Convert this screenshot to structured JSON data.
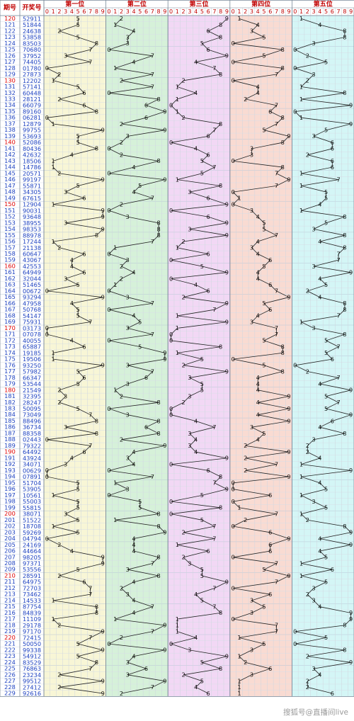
{
  "header": {
    "period": "期号",
    "number": "开奖号",
    "positions": [
      "第一位",
      "第二位",
      "第三位",
      "第四位",
      "第五位"
    ],
    "digit_labels": [
      0,
      1,
      2,
      3,
      4,
      5,
      6,
      7,
      8,
      9
    ]
  },
  "rows": [
    {
      "period": 120,
      "digits": [
        5,
        2,
        9,
        1,
        1
      ]
    },
    {
      "period": 121,
      "digits": [
        5,
        1,
        8,
        4,
        4
      ]
    },
    {
      "period": 122,
      "digits": [
        2,
        4,
        6,
        3,
        8
      ]
    },
    {
      "period": 123,
      "digits": [
        5,
        3,
        8,
        5,
        8
      ]
    },
    {
      "period": 124,
      "digits": [
        8,
        3,
        5,
        0,
        3
      ]
    },
    {
      "period": 125,
      "digits": [
        7,
        0,
        6,
        8,
        0
      ]
    },
    {
      "period": 126,
      "digits": [
        3,
        7,
        9,
        5,
        2
      ]
    },
    {
      "period": 127,
      "digits": [
        7,
        4,
        4,
        0,
        5
      ]
    },
    {
      "period": 128,
      "digits": [
        0,
        1,
        7,
        8,
        0
      ]
    },
    {
      "period": 129,
      "digits": [
        2,
        7,
        8,
        7,
        3
      ]
    },
    {
      "period": 130,
      "digits": [
        1,
        2,
        2,
        0,
        2
      ]
    },
    {
      "period": 131,
      "digits": [
        5,
        7,
        1,
        4,
        1
      ]
    },
    {
      "period": 132,
      "digits": [
        6,
        0,
        4,
        4,
        8
      ]
    },
    {
      "period": 133,
      "digits": [
        2,
        8,
        1,
        2,
        1
      ]
    },
    {
      "period": 134,
      "digits": [
        6,
        6,
        0,
        7,
        9
      ]
    },
    {
      "period": 135,
      "digits": [
        8,
        9,
        1,
        6,
        0
      ]
    },
    {
      "period": 136,
      "digits": [
        0,
        6,
        2,
        8,
        1
      ]
    },
    {
      "period": 137,
      "digits": [
        1,
        2,
        8,
        7,
        9
      ]
    },
    {
      "period": 138,
      "digits": [
        9,
        9,
        7,
        5,
        5
      ]
    },
    {
      "period": 139,
      "digits": [
        5,
        3,
        6,
        9,
        3
      ]
    },
    {
      "period": 140,
      "digits": [
        5,
        2,
        0,
        8,
        6
      ]
    },
    {
      "period": 141,
      "digits": [
        8,
        0,
        4,
        3,
        6
      ]
    },
    {
      "period": 142,
      "digits": [
        4,
        2,
        6,
        3,
        2
      ]
    },
    {
      "period": 143,
      "digits": [
        1,
        8,
        5,
        0,
        6
      ]
    },
    {
      "period": 144,
      "digits": [
        1,
        4,
        7,
        8,
        6
      ]
    },
    {
      "period": 145,
      "digits": [
        2,
        0,
        5,
        7,
        1
      ]
    },
    {
      "period": 146,
      "digits": [
        9,
        9,
        1,
        9,
        7
      ]
    },
    {
      "period": 147,
      "digits": [
        5,
        5,
        8,
        7,
        1
      ]
    },
    {
      "period": 148,
      "digits": [
        3,
        4,
        3,
        0,
        5
      ]
    },
    {
      "period": 149,
      "digits": [
        6,
        7,
        6,
        1,
        5
      ]
    },
    {
      "period": 150,
      "digits": [
        1,
        2,
        9,
        0,
        4
      ]
    },
    {
      "period": 151,
      "digits": [
        9,
        0,
        0,
        3,
        1
      ]
    },
    {
      "period": 152,
      "digits": [
        9,
        3,
        6,
        4,
        8
      ]
    },
    {
      "period": 153,
      "digits": [
        3,
        8,
        9,
        5,
        5
      ]
    },
    {
      "period": 154,
      "digits": [
        9,
        8,
        3,
        5,
        3
      ]
    },
    {
      "period": 155,
      "digits": [
        8,
        8,
        9,
        7,
        8
      ]
    },
    {
      "period": 156,
      "digits": [
        1,
        7,
        2,
        4,
        4
      ]
    },
    {
      "period": 157,
      "digits": [
        2,
        1,
        1,
        3,
        8
      ]
    },
    {
      "period": 158,
      "digits": [
        6,
        0,
        6,
        4,
        7
      ]
    },
    {
      "period": 159,
      "digits": [
        4,
        3,
        0,
        6,
        7
      ]
    },
    {
      "period": 160,
      "digits": [
        4,
        2,
        5,
        5,
        3
      ]
    },
    {
      "period": 161,
      "digits": [
        6,
        4,
        9,
        4,
        9
      ]
    },
    {
      "period": 162,
      "digits": [
        3,
        2,
        0,
        4,
        4
      ]
    },
    {
      "period": 163,
      "digits": [
        5,
        1,
        4,
        6,
        5
      ]
    },
    {
      "period": 164,
      "digits": [
        0,
        0,
        6,
        7,
        2
      ]
    },
    {
      "period": 165,
      "digits": [
        9,
        3,
        2,
        9,
        4
      ]
    },
    {
      "period": 166,
      "digits": [
        4,
        7,
        9,
        5,
        8
      ]
    },
    {
      "period": 167,
      "digits": [
        5,
        0,
        7,
        6,
        8
      ]
    },
    {
      "period": 168,
      "digits": [
        5,
        4,
        1,
        4,
        7
      ]
    },
    {
      "period": 169,
      "digits": [
        7,
        5,
        9,
        3,
        1
      ]
    },
    {
      "period": 170,
      "digits": [
        0,
        3,
        1,
        7,
        3
      ]
    },
    {
      "period": 171,
      "digits": [
        0,
        7,
        0,
        7,
        8
      ]
    },
    {
      "period": 172,
      "digits": [
        4,
        0,
        0,
        5,
        5
      ]
    },
    {
      "period": 173,
      "digits": [
        6,
        5,
        8,
        8,
        7
      ]
    },
    {
      "period": 174,
      "digits": [
        1,
        9,
        1,
        8,
        5
      ]
    },
    {
      "period": 175,
      "digits": [
        1,
        9,
        5,
        0,
        6
      ]
    },
    {
      "period": 176,
      "digits": [
        9,
        3,
        2,
        5,
        0
      ]
    },
    {
      "period": 177,
      "digits": [
        5,
        7,
        9,
        8,
        2
      ]
    },
    {
      "period": 178,
      "digits": [
        6,
        6,
        3,
        4,
        7
      ]
    },
    {
      "period": 179,
      "digits": [
        5,
        3,
        5,
        4,
        4
      ]
    },
    {
      "period": 180,
      "digits": [
        2,
        1,
        5,
        4,
        9
      ]
    },
    {
      "period": 181,
      "digits": [
        3,
        2,
        3,
        9,
        5
      ]
    },
    {
      "period": 182,
      "digits": [
        2,
        8,
        2,
        4,
        7
      ]
    },
    {
      "period": 183,
      "digits": [
        5,
        0,
        0,
        9,
        5
      ]
    },
    {
      "period": 184,
      "digits": [
        7,
        3,
        0,
        4,
        9
      ]
    },
    {
      "period": 185,
      "digits": [
        8,
        8,
        4,
        9,
        6
      ]
    },
    {
      "period": 186,
      "digits": [
        3,
        6,
        7,
        3,
        4
      ]
    },
    {
      "period": 187,
      "digits": [
        8,
        8,
        3,
        5,
        8
      ]
    },
    {
      "period": 188,
      "digits": [
        0,
        2,
        4,
        4,
        3
      ]
    },
    {
      "period": 189,
      "digits": [
        7,
        9,
        3,
        2,
        2
      ]
    },
    {
      "period": 190,
      "digits": [
        6,
        4,
        4,
        9,
        2
      ]
    },
    {
      "period": 191,
      "digits": [
        4,
        3,
        9,
        2,
        4
      ]
    },
    {
      "period": 192,
      "digits": [
        3,
        4,
        0,
        7,
        1
      ]
    },
    {
      "period": 193,
      "digits": [
        0,
        0,
        6,
        2,
        9
      ]
    },
    {
      "period": 194,
      "digits": [
        0,
        7,
        8,
        9,
        1
      ]
    },
    {
      "period": 195,
      "digits": [
        5,
        1,
        7,
        0,
        4
      ]
    },
    {
      "period": 196,
      "digits": [
        5,
        3,
        9,
        0,
        5
      ]
    },
    {
      "period": 197,
      "digits": [
        1,
        0,
        5,
        6,
        1
      ]
    },
    {
      "period": 198,
      "digits": [
        5,
        5,
        0,
        0,
        3
      ]
    },
    {
      "period": 199,
      "digits": [
        5,
        5,
        8,
        1,
        5
      ]
    },
    {
      "period": 200,
      "digits": [
        3,
        8,
        0,
        7,
        1
      ]
    },
    {
      "period": 201,
      "digits": [
        5,
        1,
        5,
        2,
        2
      ]
    },
    {
      "period": 202,
      "digits": [
        1,
        8,
        7,
        0,
        8
      ]
    },
    {
      "period": 203,
      "digits": [
        5,
        9,
        2,
        6,
        9
      ]
    },
    {
      "period": 204,
      "digits": [
        0,
        4,
        7,
        9,
        4
      ]
    },
    {
      "period": 205,
      "digits": [
        2,
        4,
        1,
        6,
        9
      ]
    },
    {
      "period": 206,
      "digits": [
        4,
        4,
        6,
        6,
        4
      ]
    },
    {
      "period": 207,
      "digits": [
        9,
        8,
        2,
        0,
        5
      ]
    },
    {
      "period": 208,
      "digits": [
        9,
        7,
        3,
        7,
        1
      ]
    },
    {
      "period": 209,
      "digits": [
        5,
        3,
        5,
        5,
        6
      ]
    },
    {
      "period": 210,
      "digits": [
        2,
        8,
        5,
        9,
        1
      ]
    },
    {
      "period": 211,
      "digits": [
        6,
        4,
        9,
        7,
        5
      ]
    },
    {
      "period": 212,
      "digits": [
        7,
        2,
        7,
        0,
        3
      ]
    },
    {
      "period": 213,
      "digits": [
        7,
        3,
        4,
        6,
        2
      ]
    },
    {
      "period": 214,
      "digits": [
        1,
        4,
        5,
        3,
        3
      ]
    },
    {
      "period": 215,
      "digits": [
        8,
        7,
        7,
        5,
        4
      ]
    },
    {
      "period": 216,
      "digits": [
        8,
        4,
        8,
        3,
        9
      ]
    },
    {
      "period": 217,
      "digits": [
        1,
        1,
        1,
        0,
        9
      ]
    },
    {
      "period": 218,
      "digits": [
        2,
        9,
        1,
        7,
        8
      ]
    },
    {
      "period": 219,
      "digits": [
        9,
        7,
        1,
        7,
        0
      ]
    },
    {
      "period": 220,
      "digits": [
        7,
        2,
        4,
        1,
        5
      ]
    },
    {
      "period": 221,
      "digits": [
        5,
        0,
        0,
        5,
        0
      ]
    },
    {
      "period": 222,
      "digits": [
        9,
        9,
        3,
        3,
        8
      ]
    },
    {
      "period": 223,
      "digits": [
        5,
        4,
        9,
        1,
        2
      ]
    },
    {
      "period": 224,
      "digits": [
        8,
        3,
        5,
        2,
        9
      ]
    },
    {
      "period": 225,
      "digits": [
        7,
        6,
        8,
        6,
        3
      ]
    },
    {
      "period": 226,
      "digits": [
        2,
        3,
        2,
        3,
        4
      ]
    },
    {
      "period": 227,
      "digits": [
        9,
        9,
        5,
        1,
        2
      ]
    },
    {
      "period": 228,
      "digits": [
        2,
        7,
        4,
        1,
        2
      ]
    },
    {
      "period": 229,
      "digits": [
        9,
        2,
        6,
        1,
        6
      ]
    }
  ],
  "watermark": "搜狐号@直播间live"
}
